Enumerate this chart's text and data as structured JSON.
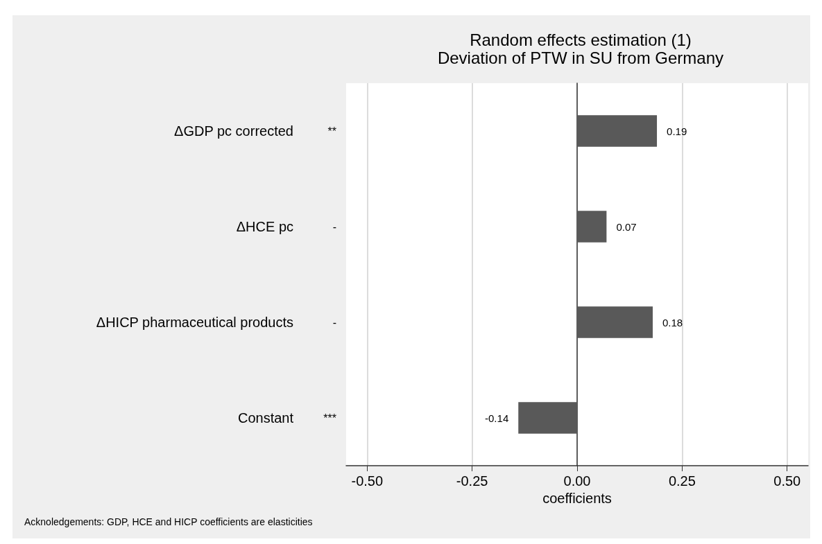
{
  "chart_data": {
    "type": "bar",
    "orientation": "horizontal",
    "title": "Random effects estimation (1)",
    "subtitle": "Deviation of PTW in SU from Germany",
    "xlabel": "coefficients",
    "categories": [
      "ΔGDP pc corrected",
      "ΔHCE pc",
      "ΔHICP pharmaceutical products",
      "Constant"
    ],
    "values": [
      0.19,
      0.07,
      0.18,
      -0.14
    ],
    "color": "#595959",
    "xlim": [
      -0.55,
      0.55
    ],
    "xticks": [
      {
        "value": -0.5,
        "label": "-0.50"
      },
      {
        "value": -0.25,
        "label": "-0.25"
      },
      {
        "value": 0,
        "label": "0.00"
      },
      {
        "value": 0.25,
        "label": "0.25"
      },
      {
        "value": 0.5,
        "label": "0.50"
      }
    ],
    "grid": "x",
    "data_labels": true,
    "annotations": [
      "**",
      "-",
      "-",
      "***",
      "Acknoledgements: GDP, HCE and HICP coefficients are elasticities"
    ]
  }
}
